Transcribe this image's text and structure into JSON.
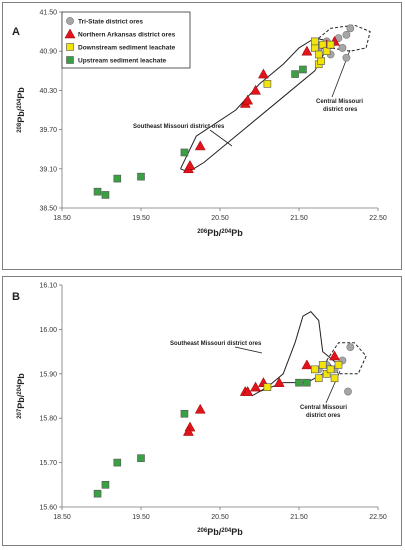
{
  "chart_data": [
    {
      "type": "scatter",
      "panel_label": "A",
      "title": "",
      "xlabel_parts": [
        "206",
        "Pb/",
        "204",
        "Pb"
      ],
      "ylabel_parts": [
        "208",
        "Pb/",
        "204",
        "Pb"
      ],
      "xlim": [
        18.5,
        22.5
      ],
      "ylim": [
        38.5,
        41.5
      ],
      "x_ticks": [
        "18.50",
        "19.50",
        "20.50",
        "21.50",
        "22.50"
      ],
      "y_ticks": [
        "38.50",
        "39.10",
        "39.70",
        "40.30",
        "40.90",
        "41.50"
      ],
      "grid": false,
      "legend_position": "top-left",
      "series": [
        {
          "name": "Tri-State district ores",
          "marker": "circle",
          "color": "#a6a6a6",
          "points": [
            [
              21.85,
              41.05
            ],
            [
              22.0,
              41.1
            ],
            [
              22.05,
              40.95
            ],
            [
              22.1,
              41.15
            ],
            [
              22.15,
              41.25
            ],
            [
              22.1,
              40.8
            ],
            [
              21.75,
              40.95
            ],
            [
              21.9,
              40.85
            ]
          ]
        },
        {
          "name": "Northern Arkansas district ores",
          "marker": "triangle",
          "color": "#e0141a",
          "points": [
            [
              20.25,
              39.45
            ],
            [
              20.1,
              39.1
            ],
            [
              20.12,
              39.15
            ],
            [
              20.82,
              40.1
            ],
            [
              20.85,
              40.15
            ],
            [
              20.95,
              40.3
            ],
            [
              21.05,
              40.55
            ],
            [
              21.6,
              40.9
            ],
            [
              21.85,
              41.0
            ],
            [
              21.95,
              41.05
            ]
          ]
        },
        {
          "name": "Downstream sediment leachate",
          "marker": "square",
          "color": "#f2e40a",
          "points": [
            [
              21.1,
              40.4
            ],
            [
              21.7,
              40.95
            ],
            [
              21.75,
              40.7
            ],
            [
              21.78,
              40.75
            ],
            [
              21.8,
              41.0
            ],
            [
              21.85,
              40.9
            ],
            [
              21.9,
              41.0
            ],
            [
              21.7,
              41.05
            ],
            [
              21.75,
              40.85
            ]
          ]
        },
        {
          "name": "Upstream sediment leachate",
          "marker": "square",
          "color": "#3aa043",
          "points": [
            [
              18.95,
              38.75
            ],
            [
              19.05,
              38.7
            ],
            [
              19.2,
              38.95
            ],
            [
              19.5,
              38.98
            ],
            [
              20.05,
              39.35
            ],
            [
              21.45,
              40.55
            ],
            [
              21.55,
              40.62
            ]
          ]
        }
      ],
      "annotations": [
        "Southeast Missouri district ores",
        "Central Missouri district ores"
      ]
    },
    {
      "type": "scatter",
      "panel_label": "B",
      "title": "",
      "xlabel_parts": [
        "206",
        "Pb/",
        "204",
        "Pb"
      ],
      "ylabel_parts": [
        "207",
        "Pb/",
        "204",
        "Pb"
      ],
      "xlim": [
        18.5,
        22.5
      ],
      "ylim": [
        15.6,
        16.1
      ],
      "x_ticks": [
        "18.50",
        "19.50",
        "20.50",
        "21.50",
        "22.50"
      ],
      "y_ticks": [
        "15.60",
        "15.70",
        "15.80",
        "15.90",
        "16.00",
        "16.10"
      ],
      "grid": false,
      "series": [
        {
          "name": "Tri-State district ores",
          "marker": "circle",
          "color": "#a6a6a6",
          "points": [
            [
              21.75,
              15.91
            ],
            [
              21.85,
              15.92
            ],
            [
              21.95,
              15.91
            ],
            [
              22.05,
              15.93
            ],
            [
              22.15,
              15.96
            ],
            [
              22.12,
              15.86
            ],
            [
              21.85,
              15.9
            ]
          ]
        },
        {
          "name": "Northern Arkansas district ores",
          "marker": "triangle",
          "color": "#e0141a",
          "points": [
            [
              20.25,
              15.82
            ],
            [
              20.12,
              15.78
            ],
            [
              20.1,
              15.77
            ],
            [
              20.82,
              15.86
            ],
            [
              20.85,
              15.86
            ],
            [
              20.95,
              15.87
            ],
            [
              21.05,
              15.88
            ],
            [
              21.25,
              15.88
            ],
            [
              21.6,
              15.92
            ],
            [
              21.95,
              15.94
            ]
          ]
        },
        {
          "name": "Downstream sediment leachate",
          "marker": "square",
          "color": "#f2e40a",
          "points": [
            [
              21.1,
              15.87
            ],
            [
              21.7,
              15.91
            ],
            [
              21.75,
              15.89
            ],
            [
              21.8,
              15.92
            ],
            [
              21.85,
              15.9
            ],
            [
              21.9,
              15.91
            ],
            [
              21.95,
              15.89
            ],
            [
              22.0,
              15.92
            ]
          ]
        },
        {
          "name": "Upstream sediment leachate",
          "marker": "square",
          "color": "#3aa043",
          "points": [
            [
              18.95,
              15.63
            ],
            [
              19.05,
              15.65
            ],
            [
              19.2,
              15.7
            ],
            [
              19.5,
              15.71
            ],
            [
              20.05,
              15.81
            ],
            [
              21.5,
              15.88
            ],
            [
              21.6,
              15.88
            ]
          ]
        }
      ],
      "annotations": [
        "Southeast Missouri district ores",
        "Central Missouri district ores"
      ]
    }
  ]
}
